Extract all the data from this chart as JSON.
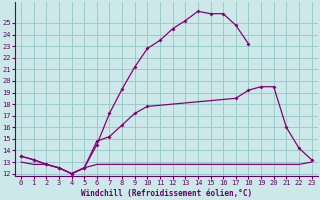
{
  "bg_color": "#cce8e8",
  "grid_color": "#99cccc",
  "line_color": "#880077",
  "xlabel": "Windchill (Refroidissement éolien,°C)",
  "xlim": [
    -0.5,
    23.5
  ],
  "ylim": [
    11.8,
    26.8
  ],
  "yticks": [
    12,
    13,
    14,
    15,
    16,
    17,
    18,
    19,
    20,
    21,
    22,
    23,
    24,
    25
  ],
  "xticks": [
    0,
    1,
    2,
    3,
    4,
    5,
    6,
    7,
    8,
    9,
    10,
    11,
    12,
    13,
    14,
    15,
    16,
    17,
    18,
    19,
    20,
    21,
    22,
    23
  ],
  "curve1_x": [
    0,
    1,
    2,
    3,
    4,
    5,
    6,
    7,
    8,
    9,
    10,
    11,
    12,
    13,
    14,
    15,
    16,
    17,
    18
  ],
  "curve1_y": [
    13.5,
    13.2,
    12.8,
    12.5,
    12.0,
    12.5,
    14.5,
    17.2,
    19.3,
    21.2,
    22.8,
    23.5,
    24.5,
    25.2,
    26.0,
    25.8,
    25.8,
    24.8,
    23.2
  ],
  "curve2_x": [
    0,
    1,
    2,
    3,
    4,
    5,
    6,
    7,
    8,
    9,
    10,
    17,
    18,
    19,
    20,
    21,
    22,
    23
  ],
  "curve2_y": [
    13.5,
    13.2,
    12.8,
    12.5,
    12.0,
    12.5,
    14.8,
    15.2,
    16.2,
    17.2,
    17.8,
    18.5,
    19.2,
    19.5,
    19.5,
    16.0,
    14.2,
    13.2
  ],
  "flat_x": [
    0,
    1,
    2,
    3,
    4,
    5,
    6,
    7,
    8,
    9,
    10,
    11,
    12,
    13,
    14,
    15,
    16,
    17,
    18,
    19,
    20,
    21,
    22,
    23
  ],
  "flat_y": [
    13.0,
    12.8,
    12.8,
    12.5,
    12.0,
    12.5,
    12.8,
    12.8,
    12.8,
    12.8,
    12.8,
    12.8,
    12.8,
    12.8,
    12.8,
    12.8,
    12.8,
    12.8,
    12.8,
    12.8,
    12.8,
    12.8,
    12.8,
    13.0
  ],
  "label_fontsize": 5.5,
  "tick_fontsize": 5.0
}
